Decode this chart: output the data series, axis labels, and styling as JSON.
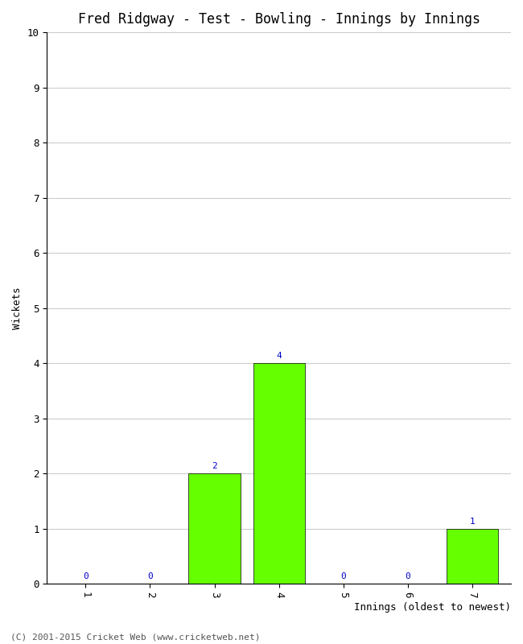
{
  "title": "Fred Ridgway - Test - Bowling - Innings by Innings",
  "xlabel": "Innings (oldest to newest)",
  "ylabel": "Wickets",
  "categories": [
    "1",
    "2",
    "3",
    "4",
    "5",
    "6",
    "7"
  ],
  "values": [
    0,
    0,
    2,
    4,
    0,
    0,
    1
  ],
  "bar_color": "#66ff00",
  "bar_edge_color": "#000000",
  "ylim": [
    0,
    10
  ],
  "yticks": [
    0,
    1,
    2,
    3,
    4,
    5,
    6,
    7,
    8,
    9,
    10
  ],
  "label_color": "#0000cc",
  "label_fontsize": 8,
  "title_fontsize": 12,
  "axis_label_fontsize": 9,
  "tick_fontsize": 9,
  "background_color": "#ffffff",
  "grid_color": "#cccccc",
  "footer": "(C) 2001-2015 Cricket Web (www.cricketweb.net)",
  "footer_fontsize": 8,
  "footer_color": "#555555"
}
